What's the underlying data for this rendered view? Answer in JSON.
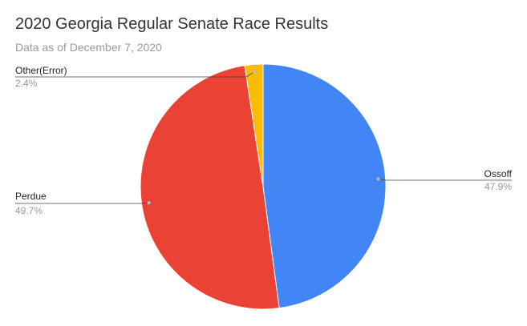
{
  "chart_data": {
    "type": "pie",
    "title": "2020 Georgia Regular Senate Race Results",
    "subtitle": "Data as of December 7, 2020",
    "start_angle_deg": 0,
    "direction": "clockwise",
    "slices": [
      {
        "name": "Ossoff",
        "value": 47.9,
        "value_label": "47.9%",
        "color": "#4285f4"
      },
      {
        "name": "Perdue",
        "value": 49.7,
        "value_label": "49.7%",
        "color": "#ea4335"
      },
      {
        "name": "Other(Error)",
        "value": 2.4,
        "value_label": "2.4%",
        "color": "#fbbc04"
      }
    ],
    "legend": "labeled-slices"
  }
}
